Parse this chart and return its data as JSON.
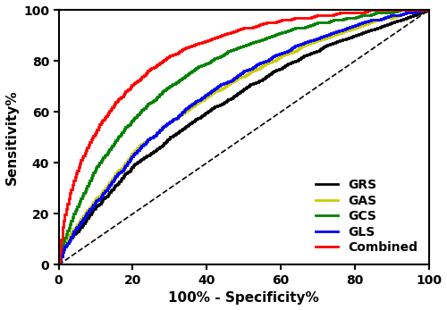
{
  "title": "",
  "xlabel": "100% - Specificity%",
  "ylabel": "Sensitivity%",
  "xlim": [
    0,
    100
  ],
  "ylim": [
    0,
    100
  ],
  "xticks": [
    0,
    20,
    40,
    60,
    80,
    100
  ],
  "yticks": [
    0,
    20,
    40,
    60,
    80,
    100
  ],
  "reference_line": {
    "color": "black",
    "linestyle": "dashed",
    "linewidth": 1.2
  },
  "curves": [
    {
      "label": "GRS",
      "color": "#000000",
      "linewidth": 2.0,
      "key_points": [
        [
          0,
          0
        ],
        [
          1,
          5
        ],
        [
          2,
          8
        ],
        [
          3,
          10
        ],
        [
          4,
          12
        ],
        [
          5,
          13
        ],
        [
          6,
          15
        ],
        [
          7,
          17
        ],
        [
          8,
          19
        ],
        [
          9,
          21
        ],
        [
          10,
          23
        ],
        [
          11,
          24
        ],
        [
          12,
          26
        ],
        [
          13,
          27
        ],
        [
          14,
          29
        ],
        [
          15,
          31
        ],
        [
          16,
          32
        ],
        [
          17,
          34
        ],
        [
          18,
          36
        ],
        [
          19,
          37
        ],
        [
          20,
          39
        ],
        [
          22,
          41
        ],
        [
          24,
          43
        ],
        [
          26,
          45
        ],
        [
          28,
          47
        ],
        [
          30,
          50
        ],
        [
          32,
          52
        ],
        [
          34,
          54
        ],
        [
          36,
          56
        ],
        [
          38,
          58
        ],
        [
          40,
          60
        ],
        [
          42,
          62
        ],
        [
          44,
          63
        ],
        [
          46,
          65
        ],
        [
          48,
          67
        ],
        [
          50,
          69
        ],
        [
          52,
          71
        ],
        [
          54,
          72
        ],
        [
          56,
          74
        ],
        [
          58,
          76
        ],
        [
          60,
          77
        ],
        [
          62,
          79
        ],
        [
          64,
          80
        ],
        [
          66,
          82
        ],
        [
          68,
          83
        ],
        [
          70,
          84
        ],
        [
          72,
          86
        ],
        [
          74,
          87
        ],
        [
          76,
          88
        ],
        [
          78,
          89
        ],
        [
          80,
          90
        ],
        [
          82,
          91
        ],
        [
          84,
          92
        ],
        [
          86,
          93
        ],
        [
          88,
          94
        ],
        [
          90,
          95
        ],
        [
          92,
          96
        ],
        [
          94,
          97
        ],
        [
          96,
          98
        ],
        [
          98,
          99
        ],
        [
          100,
          100
        ]
      ]
    },
    {
      "label": "GAS",
      "color": "#cccc00",
      "linewidth": 2.0,
      "key_points": [
        [
          0,
          0
        ],
        [
          1,
          6
        ],
        [
          2,
          9
        ],
        [
          3,
          12
        ],
        [
          4,
          14
        ],
        [
          5,
          16
        ],
        [
          6,
          18
        ],
        [
          7,
          20
        ],
        [
          8,
          22
        ],
        [
          9,
          24
        ],
        [
          10,
          26
        ],
        [
          11,
          27
        ],
        [
          12,
          29
        ],
        [
          13,
          31
        ],
        [
          14,
          33
        ],
        [
          15,
          35
        ],
        [
          16,
          37
        ],
        [
          17,
          38
        ],
        [
          18,
          40
        ],
        [
          19,
          42
        ],
        [
          20,
          44
        ],
        [
          22,
          47
        ],
        [
          24,
          49
        ],
        [
          26,
          51
        ],
        [
          28,
          54
        ],
        [
          30,
          56
        ],
        [
          32,
          58
        ],
        [
          34,
          60
        ],
        [
          36,
          62
        ],
        [
          38,
          64
        ],
        [
          40,
          66
        ],
        [
          42,
          68
        ],
        [
          44,
          69
        ],
        [
          46,
          71
        ],
        [
          48,
          73
        ],
        [
          50,
          74
        ],
        [
          52,
          76
        ],
        [
          54,
          77
        ],
        [
          56,
          79
        ],
        [
          58,
          80
        ],
        [
          60,
          82
        ],
        [
          62,
          83
        ],
        [
          64,
          84
        ],
        [
          66,
          86
        ],
        [
          68,
          87
        ],
        [
          70,
          88
        ],
        [
          72,
          89
        ],
        [
          74,
          90
        ],
        [
          76,
          91
        ],
        [
          78,
          92
        ],
        [
          80,
          93
        ],
        [
          82,
          94
        ],
        [
          84,
          95
        ],
        [
          86,
          96
        ],
        [
          88,
          97
        ],
        [
          90,
          97
        ],
        [
          92,
          98
        ],
        [
          94,
          99
        ],
        [
          96,
          99
        ],
        [
          98,
          100
        ],
        [
          100,
          100
        ]
      ]
    },
    {
      "label": "GCS",
      "color": "#008000",
      "linewidth": 2.0,
      "key_points": [
        [
          0,
          0
        ],
        [
          1,
          8
        ],
        [
          2,
          12
        ],
        [
          3,
          16
        ],
        [
          4,
          20
        ],
        [
          5,
          23
        ],
        [
          6,
          26
        ],
        [
          7,
          29
        ],
        [
          8,
          32
        ],
        [
          9,
          35
        ],
        [
          10,
          38
        ],
        [
          11,
          40
        ],
        [
          12,
          42
        ],
        [
          13,
          44
        ],
        [
          14,
          46
        ],
        [
          15,
          48
        ],
        [
          16,
          50
        ],
        [
          17,
          52
        ],
        [
          18,
          54
        ],
        [
          19,
          55
        ],
        [
          20,
          57
        ],
        [
          22,
          60
        ],
        [
          24,
          63
        ],
        [
          26,
          65
        ],
        [
          28,
          68
        ],
        [
          30,
          70
        ],
        [
          32,
          72
        ],
        [
          34,
          74
        ],
        [
          36,
          76
        ],
        [
          38,
          78
        ],
        [
          40,
          79
        ],
        [
          42,
          81
        ],
        [
          44,
          82
        ],
        [
          46,
          84
        ],
        [
          48,
          85
        ],
        [
          50,
          86
        ],
        [
          52,
          87
        ],
        [
          54,
          88
        ],
        [
          56,
          89
        ],
        [
          58,
          90
        ],
        [
          60,
          91
        ],
        [
          62,
          92
        ],
        [
          64,
          93
        ],
        [
          66,
          93
        ],
        [
          68,
          94
        ],
        [
          70,
          95
        ],
        [
          72,
          95
        ],
        [
          74,
          96
        ],
        [
          76,
          96
        ],
        [
          78,
          97
        ],
        [
          80,
          97
        ],
        [
          82,
          98
        ],
        [
          84,
          98
        ],
        [
          86,
          99
        ],
        [
          88,
          99
        ],
        [
          90,
          99
        ],
        [
          92,
          100
        ],
        [
          94,
          100
        ],
        [
          96,
          100
        ],
        [
          98,
          100
        ],
        [
          100,
          100
        ]
      ]
    },
    {
      "label": "GLS",
      "color": "#0000ff",
      "linewidth": 2.0,
      "key_points": [
        [
          0,
          0
        ],
        [
          1,
          5
        ],
        [
          2,
          8
        ],
        [
          3,
          10
        ],
        [
          4,
          13
        ],
        [
          5,
          15
        ],
        [
          6,
          17
        ],
        [
          7,
          19
        ],
        [
          8,
          21
        ],
        [
          9,
          23
        ],
        [
          10,
          25
        ],
        [
          11,
          26
        ],
        [
          12,
          28
        ],
        [
          13,
          30
        ],
        [
          14,
          32
        ],
        [
          15,
          34
        ],
        [
          16,
          36
        ],
        [
          17,
          37
        ],
        [
          18,
          39
        ],
        [
          19,
          41
        ],
        [
          20,
          43
        ],
        [
          22,
          46
        ],
        [
          24,
          49
        ],
        [
          26,
          51
        ],
        [
          28,
          54
        ],
        [
          30,
          56
        ],
        [
          32,
          58
        ],
        [
          34,
          61
        ],
        [
          36,
          63
        ],
        [
          38,
          65
        ],
        [
          40,
          67
        ],
        [
          42,
          69
        ],
        [
          44,
          71
        ],
        [
          46,
          72
        ],
        [
          48,
          74
        ],
        [
          50,
          76
        ],
        [
          52,
          77
        ],
        [
          54,
          79
        ],
        [
          56,
          80
        ],
        [
          58,
          82
        ],
        [
          60,
          83
        ],
        [
          62,
          84
        ],
        [
          64,
          86
        ],
        [
          66,
          87
        ],
        [
          68,
          88
        ],
        [
          70,
          89
        ],
        [
          72,
          90
        ],
        [
          74,
          91
        ],
        [
          76,
          92
        ],
        [
          78,
          93
        ],
        [
          80,
          94
        ],
        [
          82,
          95
        ],
        [
          84,
          96
        ],
        [
          86,
          96
        ],
        [
          88,
          97
        ],
        [
          90,
          98
        ],
        [
          92,
          98
        ],
        [
          94,
          99
        ],
        [
          96,
          99
        ],
        [
          98,
          100
        ],
        [
          100,
          100
        ]
      ]
    },
    {
      "label": "Combined",
      "color": "#ff0000",
      "linewidth": 2.0,
      "key_points": [
        [
          0,
          0
        ],
        [
          1,
          15
        ],
        [
          2,
          22
        ],
        [
          3,
          28
        ],
        [
          4,
          33
        ],
        [
          5,
          37
        ],
        [
          6,
          41
        ],
        [
          7,
          44
        ],
        [
          8,
          47
        ],
        [
          9,
          50
        ],
        [
          10,
          52
        ],
        [
          11,
          55
        ],
        [
          12,
          57
        ],
        [
          13,
          59
        ],
        [
          14,
          61
        ],
        [
          15,
          63
        ],
        [
          16,
          65
        ],
        [
          17,
          66
        ],
        [
          18,
          68
        ],
        [
          19,
          69
        ],
        [
          20,
          71
        ],
        [
          22,
          73
        ],
        [
          24,
          76
        ],
        [
          26,
          78
        ],
        [
          28,
          80
        ],
        [
          30,
          82
        ],
        [
          32,
          83
        ],
        [
          34,
          85
        ],
        [
          36,
          86
        ],
        [
          38,
          87
        ],
        [
          40,
          88
        ],
        [
          42,
          89
        ],
        [
          44,
          90
        ],
        [
          46,
          91
        ],
        [
          48,
          92
        ],
        [
          50,
          93
        ],
        [
          52,
          93
        ],
        [
          54,
          94
        ],
        [
          56,
          95
        ],
        [
          58,
          95
        ],
        [
          60,
          96
        ],
        [
          62,
          96
        ],
        [
          64,
          97
        ],
        [
          66,
          97
        ],
        [
          68,
          97
        ],
        [
          70,
          98
        ],
        [
          72,
          98
        ],
        [
          74,
          98
        ],
        [
          76,
          99
        ],
        [
          78,
          99
        ],
        [
          80,
          99
        ],
        [
          82,
          99
        ],
        [
          84,
          100
        ],
        [
          86,
          100
        ],
        [
          88,
          100
        ],
        [
          90,
          100
        ],
        [
          92,
          100
        ],
        [
          94,
          100
        ],
        [
          96,
          100
        ],
        [
          98,
          100
        ],
        [
          100,
          100
        ]
      ]
    }
  ],
  "legend_loc": "lower right",
  "legend_fontsize": 10,
  "axis_fontsize": 11,
  "tick_fontsize": 10,
  "linewidth_axis": 1.5,
  "background_color": "#ffffff"
}
